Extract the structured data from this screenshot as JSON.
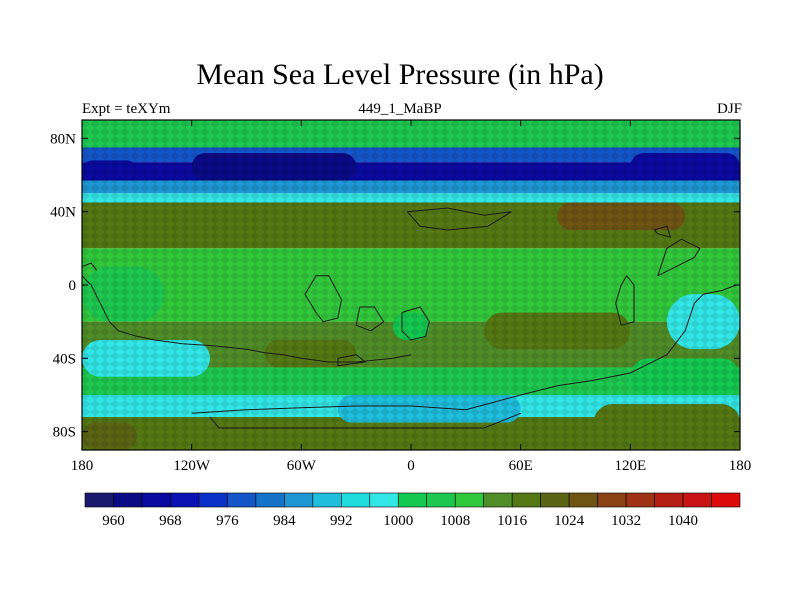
{
  "title": "Mean Sea Level Pressure (in hPa)",
  "subtitle_left": "Expt = teXYm",
  "subtitle_center": "449_1_MaBP",
  "subtitle_right": "DJF",
  "chart_data": {
    "type": "heatmap",
    "projection": "cylindrical equidistant",
    "xlim": [
      -180,
      180
    ],
    "ylim": [
      -90,
      90
    ],
    "x_ticks": [
      -180,
      -120,
      -60,
      0,
      60,
      120,
      180
    ],
    "x_tick_labels": [
      "180",
      "120W",
      "60W",
      "0",
      "60E",
      "120E",
      "180"
    ],
    "y_ticks": [
      80,
      40,
      0,
      -40,
      -80
    ],
    "y_tick_labels": [
      "80N",
      "40N",
      "0",
      "40S",
      "80S"
    ],
    "colorbar": {
      "colors": [
        "#1a1a6e",
        "#0a0a86",
        "#0a0aa0",
        "#0a14b4",
        "#0a32c8",
        "#1455c8",
        "#1473c8",
        "#1e96d2",
        "#1ebedc",
        "#1edcdc",
        "#32e6e6",
        "#14c850",
        "#1ec850",
        "#32c83c",
        "#508c28",
        "#557814",
        "#5a6414",
        "#6e5514",
        "#8c4114",
        "#a03214",
        "#b41e14",
        "#c81414",
        "#dc0a0a"
      ],
      "levels": [
        960,
        964,
        968,
        972,
        976,
        980,
        984,
        988,
        992,
        996,
        1000,
        1004,
        1008,
        1012,
        1016,
        1020,
        1024,
        1028,
        1032,
        1036,
        1040
      ],
      "labels": [
        "960",
        "968",
        "976",
        "984",
        "992",
        "1000",
        "1008",
        "1016",
        "1024",
        "1032",
        "1040"
      ]
    },
    "bands": [
      {
        "lat": [
          75,
          90
        ],
        "value": 1004
      },
      {
        "lat": [
          67,
          75
        ],
        "value": 976
      },
      {
        "lat": [
          57,
          67
        ],
        "value": 966
      },
      {
        "lat": [
          50,
          57
        ],
        "value": 986
      },
      {
        "lat": [
          45,
          50
        ],
        "value": 998
      },
      {
        "lat": [
          20,
          45
        ],
        "value": 1016
      },
      {
        "lat": [
          -20,
          20
        ],
        "value": 1008
      },
      {
        "lat": [
          -45,
          -20
        ],
        "value": 1014
      },
      {
        "lat": [
          -60,
          -45
        ],
        "value": 1004
      },
      {
        "lat": [
          -72,
          -60
        ],
        "value": 996
      },
      {
        "lat": [
          -90,
          -72
        ],
        "value": 1016
      }
    ],
    "regions": [
      {
        "lon": [
          -120,
          -30
        ],
        "lat": [
          57,
          72
        ],
        "value": 962
      },
      {
        "lon": [
          120,
          180
        ],
        "lat": [
          57,
          72
        ],
        "value": 964
      },
      {
        "lon": [
          -180,
          -150
        ],
        "lat": [
          57,
          68
        ],
        "value": 966
      },
      {
        "lon": [
          80,
          150
        ],
        "lat": [
          30,
          45
        ],
        "value": 1024
      },
      {
        "lon": [
          -160,
          -100
        ],
        "lat": [
          25,
          40
        ],
        "value": 1018
      },
      {
        "lon": [
          -60,
          20
        ],
        "lat": [
          28,
          40
        ],
        "value": 1017
      },
      {
        "lon": [
          40,
          120
        ],
        "lat": [
          -35,
          -15
        ],
        "value": 1018
      },
      {
        "lon": [
          -80,
          -30
        ],
        "lat": [
          -45,
          -30
        ],
        "value": 1017
      },
      {
        "lon": [
          -180,
          -135
        ],
        "lat": [
          -20,
          10
        ],
        "value": 1006
      },
      {
        "lon": [
          -180,
          -110
        ],
        "lat": [
          -50,
          -30
        ],
        "value": 998
      },
      {
        "lon": [
          140,
          180
        ],
        "lat": [
          -35,
          -5
        ],
        "value": 998
      },
      {
        "lon": [
          120,
          180
        ],
        "lat": [
          -60,
          -40
        ],
        "value": 1002
      },
      {
        "lon": [
          -40,
          60
        ],
        "lat": [
          -75,
          -60
        ],
        "value": 990
      },
      {
        "lon": [
          -180,
          -150
        ],
        "lat": [
          -90,
          -75
        ],
        "value": 1020
      },
      {
        "lon": [
          100,
          180
        ],
        "lat": [
          -85,
          -65
        ],
        "value": 1018
      },
      {
        "lon": [
          -10,
          10
        ],
        "lat": [
          -30,
          -15
        ],
        "value": 1000
      }
    ],
    "coastlines": [
      [
        [
          -180,
          5
        ],
        [
          -175,
          0
        ],
        [
          -170,
          -10
        ],
        [
          -165,
          -20
        ],
        [
          -160,
          -25
        ],
        [
          -150,
          -28
        ],
        [
          -140,
          -30
        ],
        [
          -125,
          -32
        ],
        [
          -110,
          -33
        ],
        [
          -100,
          -34
        ],
        [
          -90,
          -35
        ],
        [
          -80,
          -37
        ],
        [
          -70,
          -38
        ],
        [
          -60,
          -40
        ],
        [
          -45,
          -42
        ],
        [
          -30,
          -42
        ],
        [
          -10,
          -40
        ],
        [
          0,
          -38
        ]
      ],
      [
        [
          -55,
          0
        ],
        [
          -58,
          -5
        ],
        [
          -52,
          -15
        ],
        [
          -48,
          -20
        ],
        [
          -40,
          -18
        ],
        [
          -38,
          -8
        ],
        [
          -45,
          5
        ],
        [
          -52,
          5
        ],
        [
          -55,
          0
        ]
      ],
      [
        [
          -28,
          -12
        ],
        [
          -20,
          -12
        ],
        [
          -15,
          -20
        ],
        [
          -22,
          -25
        ],
        [
          -30,
          -22
        ],
        [
          -28,
          -12
        ]
      ],
      [
        [
          -5,
          -15
        ],
        [
          5,
          -12
        ],
        [
          10,
          -20
        ],
        [
          8,
          -28
        ],
        [
          0,
          -30
        ],
        [
          -5,
          -25
        ],
        [
          -5,
          -15
        ]
      ],
      [
        [
          -2,
          40
        ],
        [
          20,
          42
        ],
        [
          40,
          38
        ],
        [
          55,
          40
        ],
        [
          42,
          32
        ],
        [
          20,
          30
        ],
        [
          5,
          32
        ],
        [
          -2,
          40
        ]
      ],
      [
        [
          -40,
          -40
        ],
        [
          -30,
          -38
        ],
        [
          -25,
          -42
        ],
        [
          -40,
          -44
        ],
        [
          -40,
          -40
        ]
      ],
      [
        [
          -120,
          -70
        ],
        [
          -90,
          -68
        ],
        [
          -60,
          -67
        ],
        [
          -30,
          -66
        ],
        [
          0,
          -66
        ],
        [
          30,
          -68
        ],
        [
          60,
          -60
        ],
        [
          80,
          -55
        ],
        [
          100,
          -52
        ],
        [
          120,
          -48
        ],
        [
          140,
          -38
        ],
        [
          150,
          -25
        ],
        [
          155,
          -10
        ],
        [
          160,
          -5
        ],
        [
          170,
          -3
        ],
        [
          178,
          0
        ]
      ],
      [
        [
          -110,
          -72
        ],
        [
          -105,
          -78
        ],
        [
          -50,
          -78
        ],
        [
          0,
          -78
        ],
        [
          40,
          -78
        ],
        [
          60,
          -70
        ]
      ],
      [
        [
          118,
          5
        ],
        [
          122,
          0
        ],
        [
          122,
          -20
        ],
        [
          115,
          -22
        ],
        [
          112,
          -10
        ],
        [
          115,
          0
        ],
        [
          118,
          5
        ]
      ],
      [
        [
          135,
          5
        ],
        [
          145,
          10
        ],
        [
          155,
          15
        ],
        [
          158,
          20
        ],
        [
          148,
          25
        ],
        [
          140,
          20
        ],
        [
          135,
          5
        ]
      ],
      [
        [
          133,
          30
        ],
        [
          140,
          32
        ],
        [
          142,
          26
        ],
        [
          135,
          28
        ],
        [
          133,
          30
        ]
      ],
      [
        [
          -180,
          10
        ],
        [
          -175,
          12
        ],
        [
          -172,
          8
        ]
      ]
    ]
  }
}
